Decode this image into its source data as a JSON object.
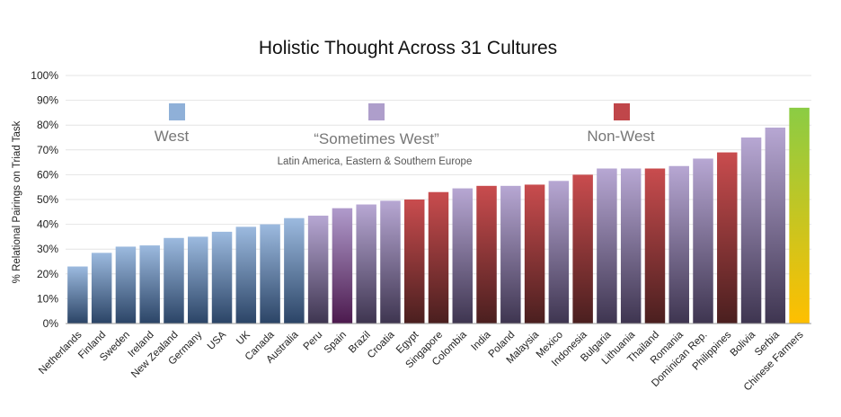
{
  "chart_data": {
    "type": "bar",
    "title": "Holistic Thought Across 31 Cultures",
    "ylabel": "% Relational Pairings on Triad Task",
    "xlabel": "",
    "ylim": [
      0,
      100
    ],
    "yticks": [
      "0%",
      "10%",
      "20%",
      "30%",
      "40%",
      "50%",
      "60%",
      "70%",
      "80%",
      "90%",
      "100%"
    ],
    "grid": true,
    "legend": [
      {
        "key": "west",
        "label": "West",
        "color": "#8fb0d8"
      },
      {
        "key": "sometimes",
        "label": "“Sometimes West”",
        "sublabel": "Latin America, Eastern & Southern Europe",
        "color": "#ae9ecb"
      },
      {
        "key": "nonwest",
        "label": "Non-West",
        "color": "#c0464a"
      }
    ],
    "categories": [
      "Netherlands",
      "Finland",
      "Sweden",
      "Ireland",
      "New Zealand",
      "Germany",
      "USA",
      "UK",
      "Canada",
      "Australia",
      "Peru",
      "Spain",
      "Brazil",
      "Croatia",
      "Egypt",
      "Singapore",
      "Colombia",
      "India",
      "Poland",
      "Malaysia",
      "Mexico",
      "Indonesia",
      "Bulgaria",
      "Lithuania",
      "Thailand",
      "Romania",
      "Dominican Rep.",
      "Philippines",
      "Bolivia",
      "Serbia",
      "Chinese Farmers"
    ],
    "values": [
      23,
      28.5,
      31,
      31.5,
      34.5,
      35,
      37,
      39,
      40,
      42.5,
      43.5,
      46.5,
      48,
      49.5,
      50,
      53,
      54.5,
      55.5,
      55.5,
      56,
      57.5,
      60,
      62.5,
      62.5,
      62.5,
      63.5,
      66.5,
      69,
      75,
      79,
      87
    ],
    "groups": [
      "west",
      "west",
      "west",
      "west",
      "west",
      "west",
      "west",
      "west",
      "west",
      "west",
      "sometimes",
      "sometimes",
      "sometimes",
      "sometimes",
      "nonwest",
      "nonwest",
      "sometimes",
      "nonwest",
      "sometimes",
      "nonwest",
      "sometimes",
      "nonwest",
      "sometimes",
      "sometimes",
      "nonwest",
      "sometimes",
      "sometimes",
      "nonwest",
      "sometimes",
      "sometimes",
      "farmers"
    ],
    "colors": {
      "west": {
        "top": "#9cbadf",
        "bottom": "#2b4466"
      },
      "sometimes": {
        "top": "#b7a7d3",
        "bottom": "#3e3550"
      },
      "spain": {
        "top": "#b09bcc",
        "bottom": "#4c1a4e"
      },
      "nonwest": {
        "top": "#c94c4e",
        "bottom": "#4a1f1f"
      },
      "farmers": {
        "top": "#8bcc44",
        "bottom": "#ffbf00"
      }
    },
    "special_colors": {
      "Spain": "spain"
    }
  }
}
